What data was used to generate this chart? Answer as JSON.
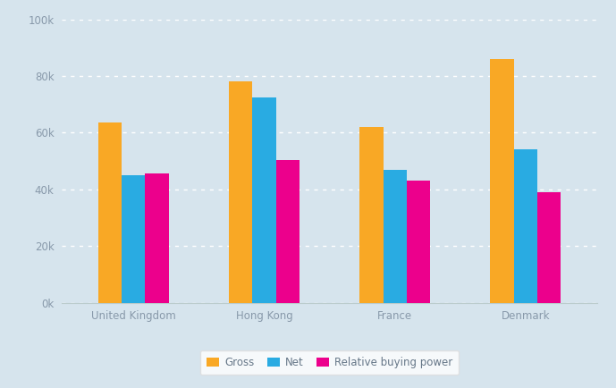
{
  "categories": [
    "United Kingdom",
    "Hong Kong",
    "France",
    "Denmark"
  ],
  "series": {
    "Gross": [
      63500,
      78000,
      62000,
      86000
    ],
    "Net": [
      45000,
      72500,
      47000,
      54000
    ],
    "Relative buying power": [
      45500,
      50500,
      43000,
      39000
    ]
  },
  "bar_colors": {
    "Gross": "#F9A825",
    "Net": "#29ABE2",
    "Relative buying power": "#EC008C"
  },
  "background_color": "#D6E4ED",
  "plot_bg_color": "#D6E4ED",
  "ylim": [
    0,
    100000
  ],
  "yticks": [
    0,
    20000,
    40000,
    60000,
    80000,
    100000
  ],
  "ytick_labels": [
    "0k",
    "20k",
    "40k",
    "60k",
    "80k",
    "100k"
  ],
  "grid_color": "#FFFFFF",
  "bar_width": 0.18,
  "tick_color": "#8899AA",
  "axis_line_color": "#BBCCCC",
  "legend_facecolor": "#FFFFFF",
  "legend_edgecolor": "#DDDDDD"
}
